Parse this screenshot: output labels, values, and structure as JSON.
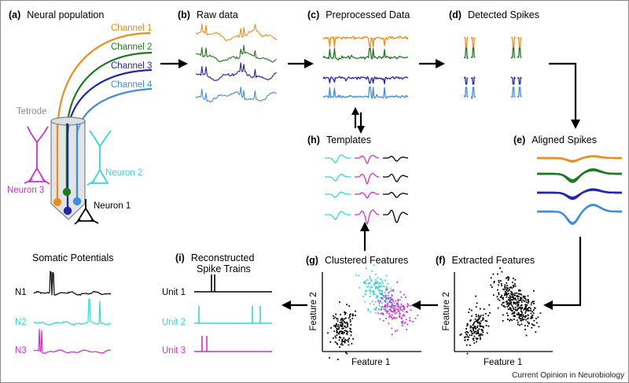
{
  "colors": {
    "orange": "#F08C1A",
    "green": "#1E7A1E",
    "blue": "#2323B4",
    "lightblue": "#3F8DE0",
    "cyan": "#33D6D6",
    "magenta": "#D12FD1",
    "black": "#000000",
    "gray": "#8C8C8C"
  },
  "panels": {
    "a": {
      "letter": "(a)",
      "title": "Neural population"
    },
    "b": {
      "letter": "(b)",
      "title": "Raw data"
    },
    "c": {
      "letter": "(c)",
      "title": "Preprocessed Data"
    },
    "d": {
      "letter": "(d)",
      "title": "Detected Spikes"
    },
    "e": {
      "letter": "(e)",
      "title": "Aligned Spikes"
    },
    "f": {
      "letter": "(f)",
      "title": "Extracted Features"
    },
    "g": {
      "letter": "(g)",
      "title": "Clustered Features"
    },
    "h": {
      "letter": "(h)",
      "title": "Templates"
    },
    "i": {
      "letter": "(i)",
      "title_line1": "Reconstructed",
      "title_line2": "Spike Trains"
    }
  },
  "channels": [
    "Channel 1",
    "Channel 2",
    "Channel 3",
    "Channel 4"
  ],
  "tetrode_label": "Tetrode",
  "neurons": {
    "n1": "Neuron 1",
    "n2": "Neuron 2",
    "n3": "Neuron 3"
  },
  "somatic": {
    "title": "Somatic Potentials",
    "rows": [
      "N1",
      "N2",
      "N3"
    ]
  },
  "units": [
    "Unit 1",
    "Unit 2",
    "Unit 3"
  ],
  "axes": {
    "feature1": "Feature 1",
    "feature2": "Feature 2"
  },
  "credit": "Current Opinion in Neurobiology"
}
